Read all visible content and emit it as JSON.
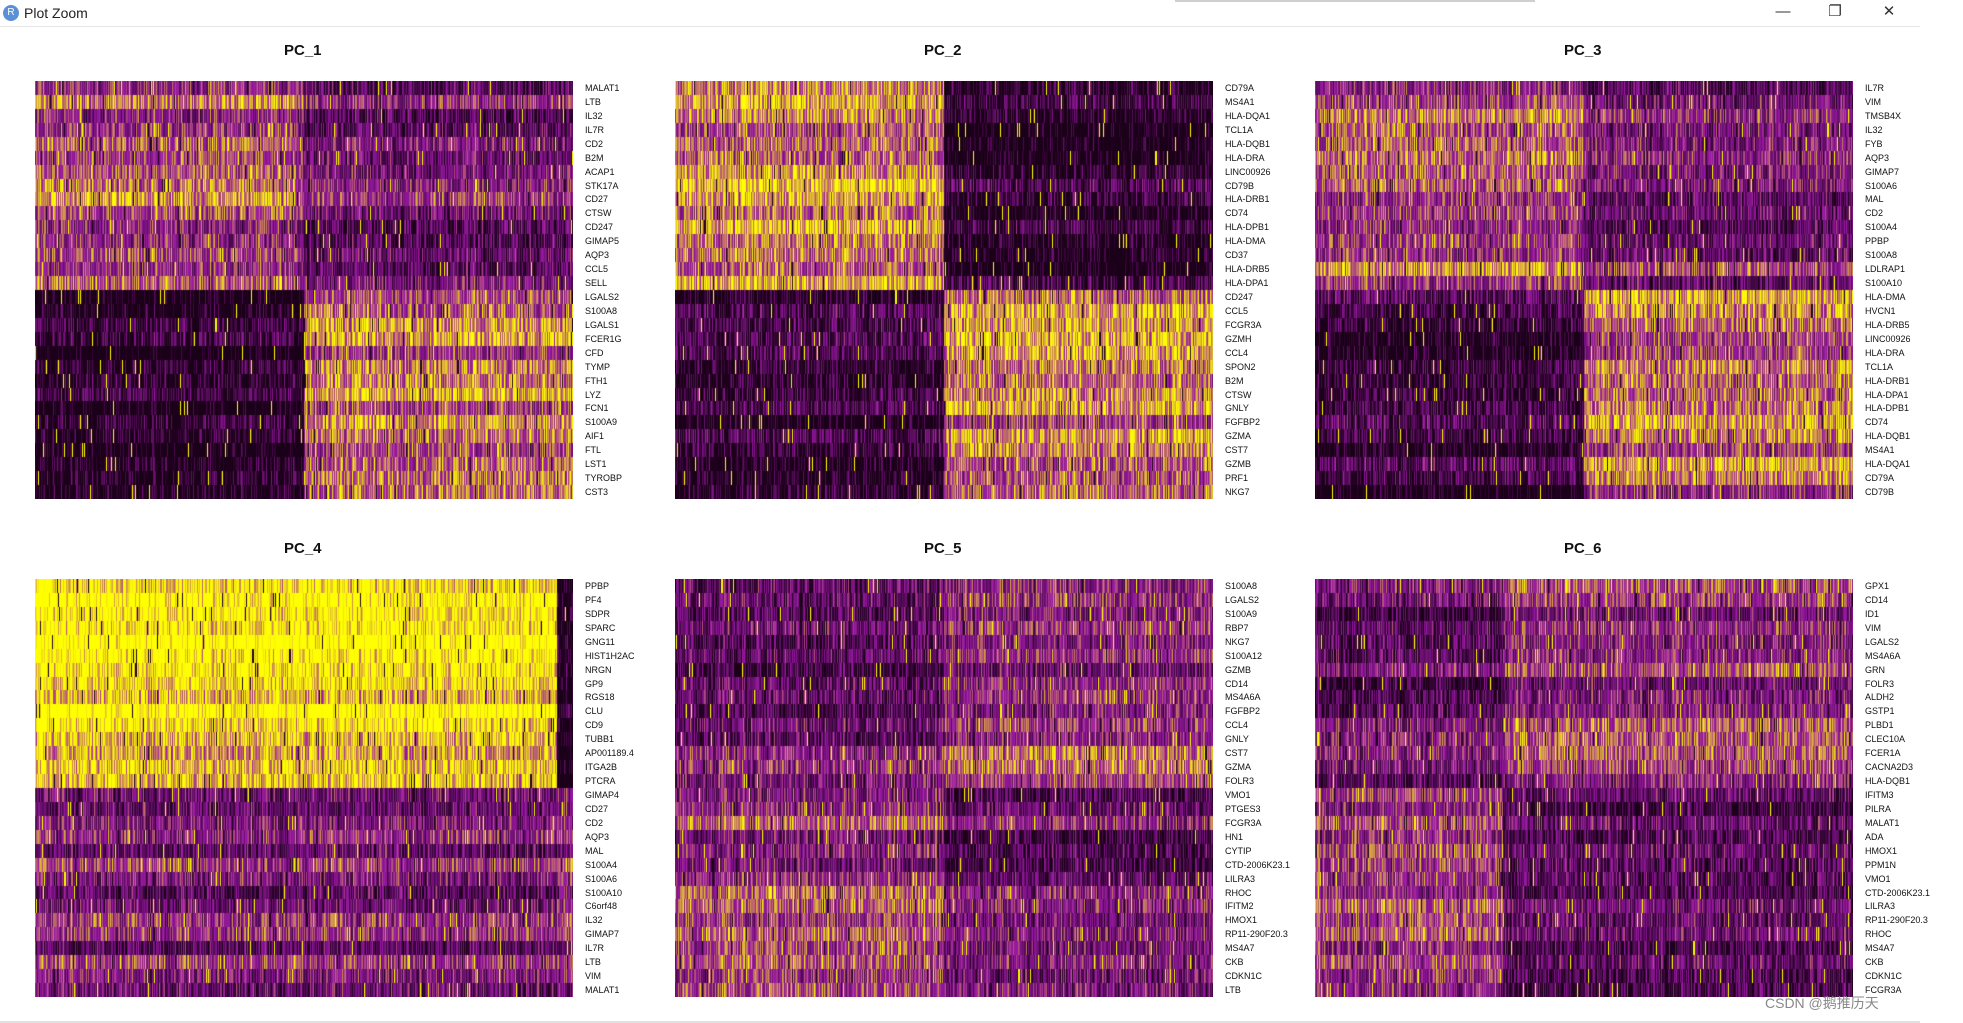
{
  "window": {
    "title": "Plot Zoom",
    "icon_letter": "R",
    "controls": {
      "minimize": "—",
      "maximize": "❐",
      "close": "✕"
    }
  },
  "colors": {
    "low": "#1a0018",
    "mid": "#9a19a4",
    "high": "#ffff00"
  },
  "chart_data": [
    {
      "type": "heatmap",
      "title": "PC_1",
      "genes": [
        "MALAT1",
        "LTB",
        "IL32",
        "IL7R",
        "CD2",
        "B2M",
        "ACAP1",
        "STK17A",
        "CD27",
        "CTSW",
        "CD247",
        "GIMAP5",
        "AQP3",
        "CCL5",
        "SELL",
        "LGALS2",
        "S100A8",
        "LGALS1",
        "FCER1G",
        "CFD",
        "TYMP",
        "FTH1",
        "LYZ",
        "FCN1",
        "S100A9",
        "AIF1",
        "FTL",
        "LST1",
        "TYROBP",
        "CST3"
      ],
      "split_fraction": 0.5,
      "top_block_rows": 15,
      "quadrants": {
        "top_left": 0.62,
        "top_right": 0.38,
        "bottom_left": 0.05,
        "bottom_right": 0.7
      }
    },
    {
      "type": "heatmap",
      "title": "PC_2",
      "genes": [
        "CD79A",
        "MS4A1",
        "HLA-DQA1",
        "TCL1A",
        "HLA-DQB1",
        "HLA-DRA",
        "LINC00926",
        "CD79B",
        "HLA-DRB1",
        "CD74",
        "HLA-DPB1",
        "HLA-DMA",
        "CD37",
        "HLA-DRB5",
        "HLA-DPA1",
        "CD247",
        "CCL5",
        "FCGR3A",
        "GZMH",
        "CCL4",
        "SPON2",
        "B2M",
        "CTSW",
        "GNLY",
        "FGFBP2",
        "GZMA",
        "CST7",
        "GZMB",
        "PRF1",
        "NKG7"
      ],
      "split_fraction": 0.5,
      "top_block_rows": 15,
      "quadrants": {
        "top_left": 0.78,
        "top_right": 0.1,
        "bottom_left": 0.1,
        "bottom_right": 0.7
      }
    },
    {
      "type": "heatmap",
      "title": "PC_3",
      "genes": [
        "IL7R",
        "VIM",
        "TMSB4X",
        "IL32",
        "FYB",
        "AQP3",
        "GIMAP7",
        "S100A6",
        "MAL",
        "CD2",
        "S100A4",
        "PPBP",
        "S100A8",
        "LDLRAP1",
        "S100A10",
        "HLA-DMA",
        "HVCN1",
        "HLA-DRB5",
        "LINC00926",
        "HLA-DRA",
        "TCL1A",
        "HLA-DRB1",
        "HLA-DPA1",
        "HLA-DPB1",
        "CD74",
        "HLA-DQB1",
        "MS4A1",
        "HLA-DQA1",
        "CD79A",
        "CD79B"
      ],
      "split_fraction": 0.5,
      "top_block_rows": 15,
      "quadrants": {
        "top_left": 0.62,
        "top_right": 0.4,
        "bottom_left": 0.1,
        "bottom_right": 0.66
      }
    },
    {
      "type": "heatmap",
      "title": "PC_4",
      "genes": [
        "PPBP",
        "PF4",
        "SDPR",
        "SPARC",
        "GNG11",
        "HIST1H2AC",
        "NRGN",
        "GP9",
        "RGS18",
        "CLU",
        "CD9",
        "TUBB1",
        "AP001189.4",
        "ITGA2B",
        "PTCRA",
        "GIMAP4",
        "CD27",
        "CD2",
        "AQP3",
        "MAL",
        "S100A4",
        "S100A6",
        "S100A10",
        "C6orf48",
        "IL32",
        "GIMAP7",
        "IL7R",
        "LTB",
        "VIM",
        "MALAT1"
      ],
      "split_fraction": 0.97,
      "top_block_rows": 15,
      "quadrants": {
        "top_left": 0.96,
        "top_right": 0.02,
        "bottom_left": 0.42,
        "bottom_right": 0.55
      }
    },
    {
      "type": "heatmap",
      "title": "PC_5",
      "genes": [
        "S100A8",
        "LGALS2",
        "S100A9",
        "RBP7",
        "NKG7",
        "S100A12",
        "GZMB",
        "CD14",
        "MS4A6A",
        "FGFBP2",
        "CCL4",
        "GNLY",
        "CST7",
        "GZMA",
        "FOLR3",
        "VMO1",
        "PTGES3",
        "FCGR3A",
        "HN1",
        "CYTIP",
        "CTD-2006K23.1",
        "LILRA3",
        "RHOC",
        "IFITM2",
        "HMOX1",
        "RP11-290F20.3",
        "MS4A7",
        "CKB",
        "CDKN1C",
        "LTB"
      ],
      "split_fraction": 0.5,
      "top_block_rows": 15,
      "quadrants": {
        "top_left": 0.32,
        "top_right": 0.52,
        "bottom_left": 0.5,
        "bottom_right": 0.3
      }
    },
    {
      "type": "heatmap",
      "title": "PC_6",
      "genes": [
        "GPX1",
        "CD14",
        "ID1",
        "VIM",
        "LGALS2",
        "MS4A6A",
        "GRN",
        "FOLR3",
        "ALDH2",
        "GSTP1",
        "PLBD1",
        "CLEC10A",
        "FCER1A",
        "CACNA2D3",
        "HLA-DQB1",
        "IFITM3",
        "PILRA",
        "MALAT1",
        "ADA",
        "HMOX1",
        "PPM1N",
        "VMO1",
        "CTD-2006K23.1",
        "LILRA3",
        "RP11-290F20.3",
        "RHOC",
        "MS4A7",
        "CKB",
        "CDKN1C",
        "FCGR3A"
      ],
      "split_fraction": 0.35,
      "top_block_rows": 15,
      "quadrants": {
        "top_left": 0.3,
        "top_right": 0.5,
        "bottom_left": 0.5,
        "bottom_right": 0.22
      }
    }
  ],
  "watermark": "CSDN @鹅推历天"
}
